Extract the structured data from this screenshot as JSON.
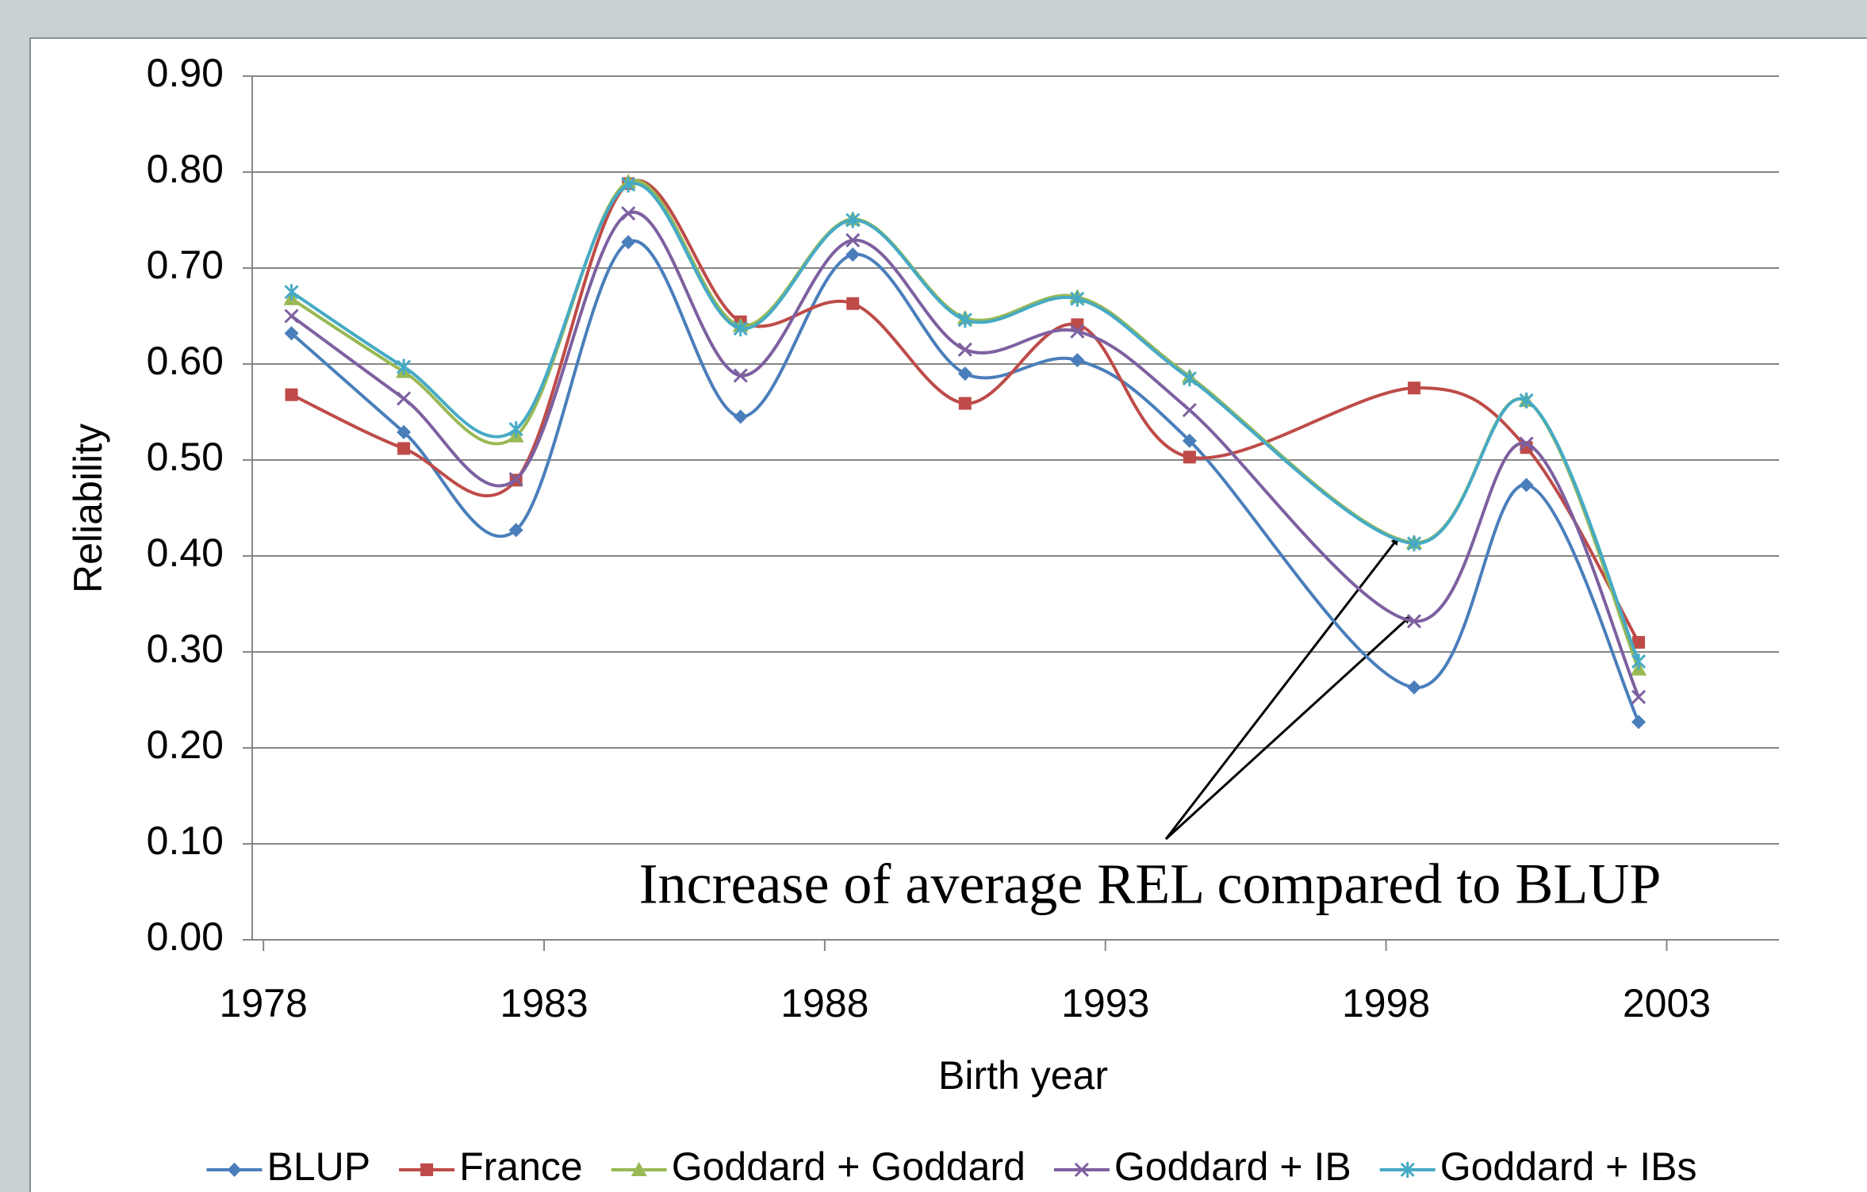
{
  "chart_data": {
    "type": "line",
    "smooth": true,
    "x_label": "Birth year",
    "y_label": "Reliability",
    "annotation": "Increase of average REL compared to BLUP",
    "x": [
      1978.5,
      1980.5,
      1982.5,
      1984.5,
      1986.5,
      1988.5,
      1990.5,
      1992.5,
      1994.5,
      1998.5,
      2000.5,
      2002.5
    ],
    "xlim": [
      1977.8,
      2005
    ],
    "xticks": [
      1978,
      1983,
      1988,
      1993,
      1998,
      2003
    ],
    "ylim": [
      0,
      0.9
    ],
    "yticks": [
      {
        "value": 0,
        "label": "0.00"
      },
      {
        "value": 0.1,
        "label": "0.10"
      },
      {
        "value": 0.2,
        "label": "0.20"
      },
      {
        "value": 0.3,
        "label": "0.30"
      },
      {
        "value": 0.4,
        "label": "0.40"
      },
      {
        "value": 0.5,
        "label": "0.50"
      },
      {
        "value": 0.6,
        "label": "0.60"
      },
      {
        "value": 0.7,
        "label": "0.70"
      },
      {
        "value": 0.8,
        "label": "0.80"
      },
      {
        "value": 0.9,
        "label": "0.90"
      }
    ],
    "grid": true,
    "legend": "bottom",
    "series": [
      {
        "name": "BLUP",
        "color": "#4a7ebb",
        "marker": "diamond",
        "values": [
          0.632,
          0.529,
          0.427,
          0.727,
          0.545,
          0.714,
          0.59,
          0.604,
          0.52,
          0.263,
          0.474,
          0.227
        ]
      },
      {
        "name": "France",
        "color": "#be4b48",
        "marker": "square",
        "values": [
          0.568,
          0.512,
          0.479,
          0.788,
          0.644,
          0.663,
          0.559,
          0.641,
          0.503,
          0.575,
          0.513,
          0.31
        ]
      },
      {
        "name": "Goddard + Goddard",
        "color": "#98b954",
        "marker": "triangle",
        "values": [
          0.668,
          0.592,
          0.525,
          0.79,
          0.64,
          0.751,
          0.648,
          0.67,
          0.587,
          0.414,
          0.562,
          0.282
        ]
      },
      {
        "name": "Goddard + IB",
        "color": "#7d60a0",
        "marker": "x",
        "values": [
          0.65,
          0.564,
          0.48,
          0.757,
          0.588,
          0.729,
          0.615,
          0.634,
          0.552,
          0.332,
          0.517,
          0.253
        ]
      },
      {
        "name": "Goddard + IBs",
        "color": "#46aac5",
        "marker": "star",
        "values": [
          0.675,
          0.597,
          0.532,
          0.787,
          0.637,
          0.75,
          0.646,
          0.668,
          0.585,
          0.413,
          0.562,
          0.29
        ]
      }
    ]
  }
}
